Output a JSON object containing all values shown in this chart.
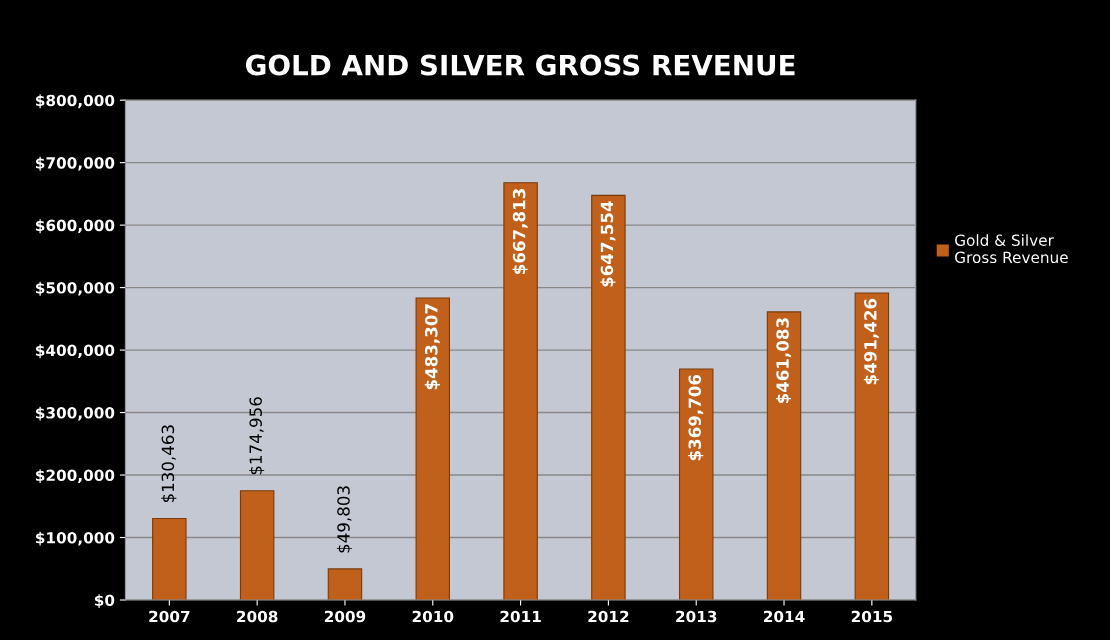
{
  "chart_data": {
    "type": "bar",
    "title": "GOLD AND SILVER GROSS REVENUE",
    "categories": [
      "2007",
      "2008",
      "2009",
      "2010",
      "2011",
      "2012",
      "2013",
      "2014",
      "2015"
    ],
    "series": [
      {
        "name": "Gold & Silver\nGross Revenue",
        "color": "#c0601a",
        "values": [
          130463,
          174956,
          49803,
          483307,
          667813,
          647554,
          369706,
          461083,
          491426
        ]
      }
    ],
    "value_labels": [
      "$130,463",
      "$174,956",
      "$49,803",
      "$483,307",
      "$667,813",
      "$647,554",
      "$369,706",
      "$461,083",
      "$491,426"
    ],
    "ylim": [
      0,
      800000
    ],
    "yticks": [
      {
        "value": 0,
        "label": "$0"
      },
      {
        "value": 100000,
        "label": "$100,000"
      },
      {
        "value": 200000,
        "label": "$200,000"
      },
      {
        "value": 300000,
        "label": "$300,000"
      },
      {
        "value": 400000,
        "label": "$400,000"
      },
      {
        "value": 500000,
        "label": "$500,000"
      },
      {
        "value": 600000,
        "label": "$600,000"
      },
      {
        "value": 700000,
        "label": "$700,000"
      },
      {
        "value": 800000,
        "label": "$800,000"
      }
    ],
    "grid": "y",
    "legend": "right"
  }
}
